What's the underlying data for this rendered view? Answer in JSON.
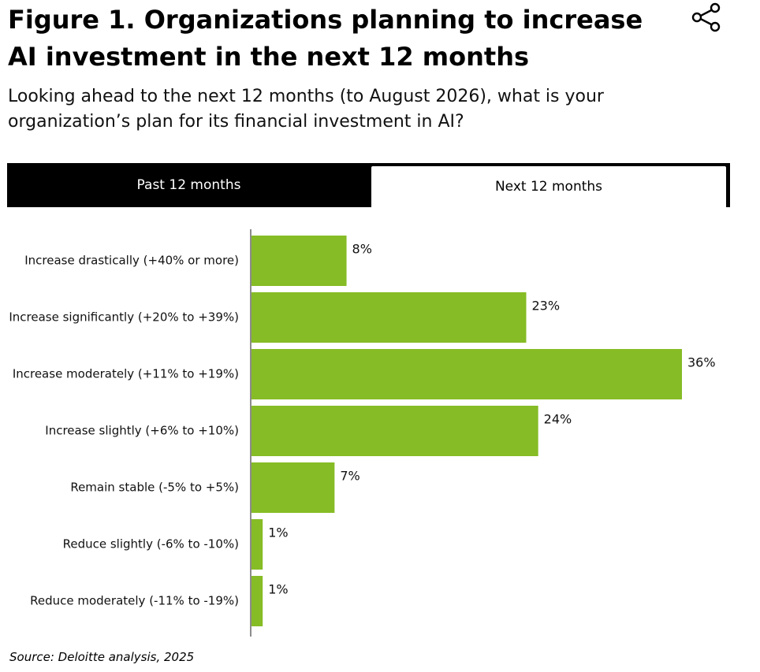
{
  "header": {
    "title": "Figure 1. Organizations planning to increase AI investment in the next 12 months",
    "subtitle": "Looking ahead to the next 12 months (to August 2026), what is your organization’s plan for its financial investment in AI?",
    "share_icon": "share-icon"
  },
  "tabs": [
    {
      "label": "Past 12 months",
      "selected": false
    },
    {
      "label": "Next 12 months",
      "selected": true
    }
  ],
  "chart_data": {
    "type": "bar",
    "orientation": "horizontal",
    "categories": [
      "Increase drastically (+40% or more)",
      "Increase significantly (+20% to +39%)",
      "Increase moderately (+11% to +19%)",
      "Increase slightly (+6% to +10%)",
      "Remain stable (-5% to +5%)",
      "Reduce slightly (-6% to -10%)",
      "Reduce moderately (-11% to -19%)"
    ],
    "values": [
      8,
      23,
      36,
      24,
      7,
      1,
      1
    ],
    "value_labels": [
      "8%",
      "23%",
      "36%",
      "24%",
      "7%",
      "1%",
      "1%"
    ],
    "xlim": [
      0,
      40
    ],
    "grid": false,
    "bar_color": "#86bc25",
    "axis_color": "#8c8c8c"
  },
  "footer": {
    "source": "Source: Deloitte analysis, 2025"
  }
}
